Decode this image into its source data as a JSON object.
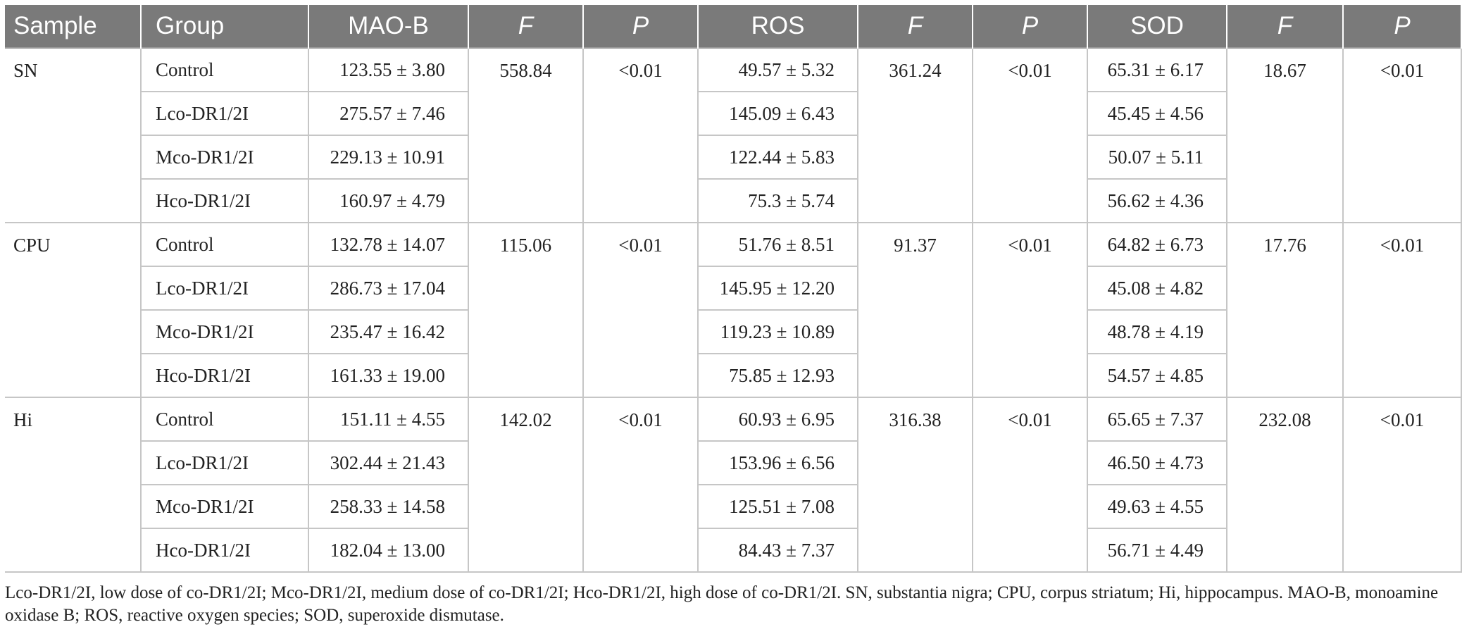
{
  "table": {
    "headers": [
      "Sample",
      "Group",
      "MAO-B",
      "F",
      "P",
      "ROS",
      "F",
      "P",
      "SOD",
      "F",
      "P"
    ],
    "blocks": [
      {
        "sample": "SN",
        "maob_f": "558.84",
        "maob_p": "<0.01",
        "ros_f": "361.24",
        "ros_p": "<0.01",
        "sod_f": "18.67",
        "sod_p": "<0.01",
        "rows": [
          {
            "group": "Control",
            "maob": "123.55 ± 3.80",
            "ros": "49.57 ± 5.32",
            "sod": "65.31 ± 6.17"
          },
          {
            "group": "Lco-DR1/2I",
            "maob": "275.57 ± 7.46",
            "ros": "145.09 ± 6.43",
            "sod": "45.45 ± 4.56"
          },
          {
            "group": "Mco-DR1/2I",
            "maob": "229.13 ± 10.91",
            "ros": "122.44 ± 5.83",
            "sod": "50.07 ± 5.11"
          },
          {
            "group": "Hco-DR1/2I",
            "maob": "160.97 ± 4.79",
            "ros": "75.3 ± 5.74",
            "sod": "56.62 ± 4.36"
          }
        ]
      },
      {
        "sample": "CPU",
        "maob_f": "115.06",
        "maob_p": "<0.01",
        "ros_f": "91.37",
        "ros_p": "<0.01",
        "sod_f": "17.76",
        "sod_p": "<0.01",
        "rows": [
          {
            "group": "Control",
            "maob": "132.78 ± 14.07",
            "ros": "51.76 ± 8.51",
            "sod": "64.82 ± 6.73"
          },
          {
            "group": "Lco-DR1/2I",
            "maob": "286.73 ± 17.04",
            "ros": "145.95 ± 12.20",
            "sod": "45.08 ± 4.82"
          },
          {
            "group": "Mco-DR1/2I",
            "maob": "235.47 ± 16.42",
            "ros": "119.23 ± 10.89",
            "sod": "48.78 ± 4.19"
          },
          {
            "group": "Hco-DR1/2I",
            "maob": "161.33 ± 19.00",
            "ros": "75.85 ± 12.93",
            "sod": "54.57 ± 4.85"
          }
        ]
      },
      {
        "sample": "Hi",
        "maob_f": "142.02",
        "maob_p": "<0.01",
        "ros_f": "316.38",
        "ros_p": "<0.01",
        "sod_f": "232.08",
        "sod_p": "<0.01",
        "rows": [
          {
            "group": "Control",
            "maob": "151.11 ± 4.55",
            "ros": "60.93 ± 6.95",
            "sod": "65.65 ± 7.37"
          },
          {
            "group": "Lco-DR1/2I",
            "maob": "302.44 ± 21.43",
            "ros": "153.96 ± 6.56",
            "sod": "46.50 ± 4.73"
          },
          {
            "group": "Mco-DR1/2I",
            "maob": "258.33 ± 14.58",
            "ros": "125.51 ± 7.08",
            "sod": "49.63 ± 4.55"
          },
          {
            "group": "Hco-DR1/2I",
            "maob": "182.04 ± 13.00",
            "ros": "84.43 ± 7.37",
            "sod": "56.71 ± 4.49"
          }
        ]
      }
    ]
  },
  "footnote": "Lco-DR1/2I, low dose of co-DR1/2I; Mco-DR1/2I, medium dose of co-DR1/2I; Hco-DR1/2I, high dose of co-DR1/2I. SN, substantia nigra; CPU, corpus striatum; Hi, hippocampus. MAO-B, monoamine oxidase B; ROS, reactive oxygen species; SOD, superoxide dismutase."
}
